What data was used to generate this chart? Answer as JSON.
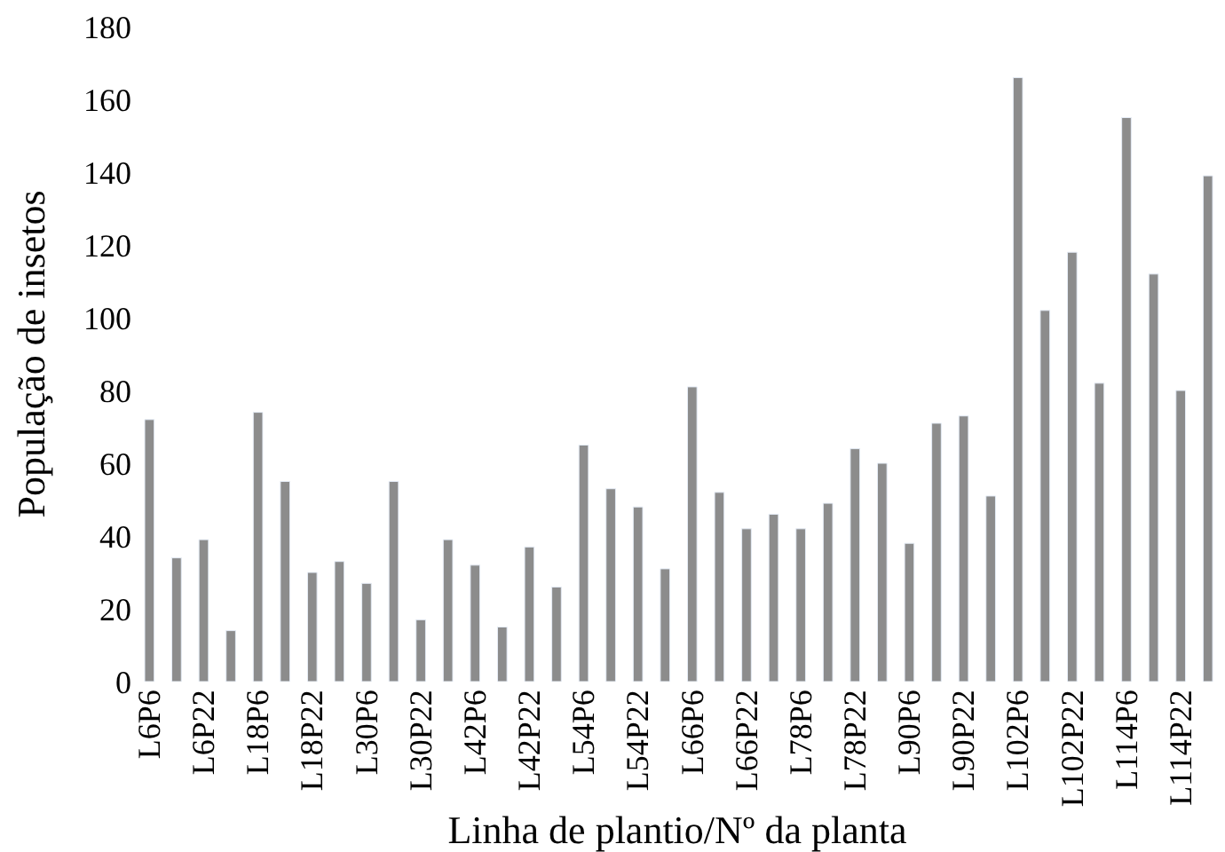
{
  "chart_data": {
    "type": "bar",
    "xlabel": "Linha de plantio/Nº da planta",
    "ylabel": "População de insetos",
    "categories": [
      "L6P6",
      null,
      "L6P22",
      null,
      "L18P6",
      null,
      "L18P22",
      null,
      "L30P6",
      null,
      "L30P22",
      null,
      "L42P6",
      null,
      "L42P22",
      null,
      "L54P6",
      null,
      "L54P22",
      null,
      "L66P6",
      null,
      "L66P22",
      null,
      "L78P6",
      null,
      "L78P22",
      null,
      "L90P6",
      null,
      "L90P22",
      null,
      "L102P6",
      null,
      "L102P22",
      null,
      "L114P6",
      null,
      "L114P22",
      null
    ],
    "values": [
      72,
      34,
      39,
      14,
      74,
      55,
      30,
      33,
      27,
      55,
      17,
      39,
      32,
      15,
      37,
      26,
      65,
      53,
      48,
      31,
      81,
      52,
      42,
      46,
      42,
      49,
      64,
      60,
      38,
      71,
      73,
      51,
      166,
      102,
      118,
      82,
      155,
      112,
      80,
      139
    ],
    "color": "#8c8c8c",
    "ylim": [
      0,
      180
    ],
    "yticks": [
      0,
      20,
      40,
      60,
      80,
      100,
      120,
      140,
      160,
      180
    ]
  }
}
